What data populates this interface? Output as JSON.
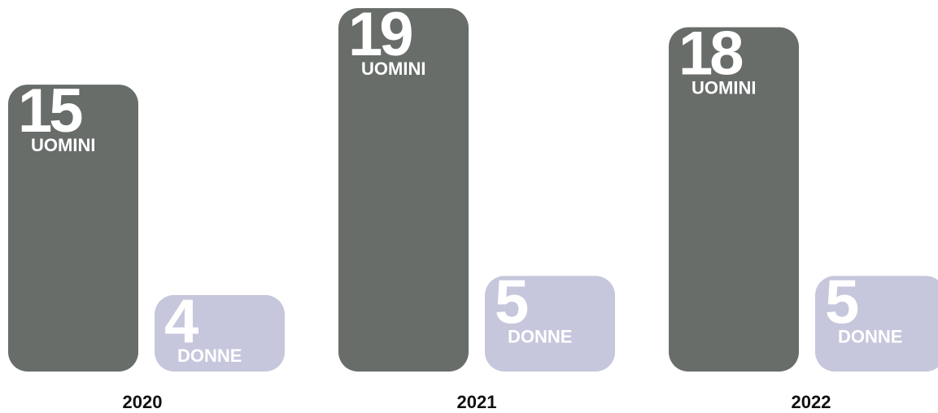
{
  "chart_data": {
    "type": "bar",
    "categories": [
      "2020",
      "2021",
      "2022"
    ],
    "series": [
      {
        "name": "UOMINI",
        "color": "#686d6a",
        "values": [
          15,
          19,
          18
        ]
      },
      {
        "name": "DONNE",
        "color": "#c6c7dc",
        "values": [
          4,
          5,
          5
        ]
      }
    ]
  }
}
